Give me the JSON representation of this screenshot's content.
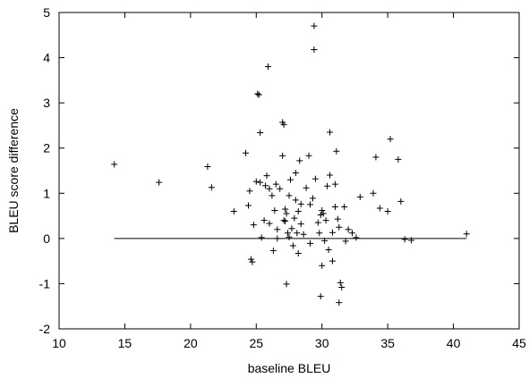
{
  "chart_data": {
    "type": "scatter",
    "title": "",
    "xlabel": "baseline BLEU",
    "ylabel": "BLEU score difference",
    "xlim": [
      10,
      45
    ],
    "ylim": [
      -2,
      5
    ],
    "xticks": [
      10,
      15,
      20,
      25,
      30,
      35,
      40,
      45
    ],
    "yticks": [
      -2,
      -1,
      0,
      1,
      2,
      3,
      4,
      5
    ],
    "grid": false,
    "marker": "plus",
    "reference_line": {
      "y": 0,
      "x_range": [
        14.2,
        41.0
      ]
    },
    "points": [
      [
        14.2,
        1.64
      ],
      [
        17.6,
        1.24
      ],
      [
        21.3,
        1.59
      ],
      [
        21.6,
        1.13
      ],
      [
        23.3,
        0.6
      ],
      [
        24.2,
        1.89
      ],
      [
        24.4,
        0.73
      ],
      [
        24.5,
        1.05
      ],
      [
        24.6,
        -0.46
      ],
      [
        24.7,
        -0.52
      ],
      [
        24.8,
        0.3
      ],
      [
        25.0,
        1.26
      ],
      [
        25.1,
        3.2
      ],
      [
        25.2,
        3.18
      ],
      [
        25.3,
        2.34
      ],
      [
        25.3,
        1.24
      ],
      [
        25.4,
        0.02
      ],
      [
        25.6,
        0.4
      ],
      [
        25.7,
        1.17
      ],
      [
        25.8,
        1.39
      ],
      [
        25.9,
        3.8
      ],
      [
        26.0,
        1.1
      ],
      [
        26.0,
        0.33
      ],
      [
        26.2,
        0.95
      ],
      [
        26.3,
        -0.27
      ],
      [
        26.4,
        0.62
      ],
      [
        26.5,
        1.2
      ],
      [
        26.6,
        0.0
      ],
      [
        26.6,
        0.2
      ],
      [
        26.8,
        1.1
      ],
      [
        27.0,
        1.83
      ],
      [
        27.0,
        2.57
      ],
      [
        27.1,
        2.52
      ],
      [
        27.1,
        0.4
      ],
      [
        27.2,
        0.65
      ],
      [
        27.2,
        0.38
      ],
      [
        27.3,
        0.55
      ],
      [
        27.3,
        -1.01
      ],
      [
        27.4,
        0.12
      ],
      [
        27.5,
        0.03
      ],
      [
        27.5,
        0.95
      ],
      [
        27.6,
        1.3
      ],
      [
        27.7,
        0.22
      ],
      [
        27.8,
        -0.16
      ],
      [
        27.9,
        0.45
      ],
      [
        28.0,
        1.45
      ],
      [
        28.0,
        0.85
      ],
      [
        28.1,
        0.12
      ],
      [
        28.2,
        0.6
      ],
      [
        28.2,
        -0.33
      ],
      [
        28.3,
        1.72
      ],
      [
        28.4,
        0.32
      ],
      [
        28.4,
        0.76
      ],
      [
        28.6,
        0.09
      ],
      [
        28.8,
        1.12
      ],
      [
        29.0,
        1.83
      ],
      [
        29.1,
        0.75
      ],
      [
        29.1,
        -0.11
      ],
      [
        29.3,
        0.89
      ],
      [
        29.4,
        4.7
      ],
      [
        29.4,
        4.18
      ],
      [
        29.5,
        1.32
      ],
      [
        29.7,
        0.35
      ],
      [
        29.8,
        0.12
      ],
      [
        29.9,
        -1.28
      ],
      [
        29.9,
        0.52
      ],
      [
        30.0,
        -0.6
      ],
      [
        30.0,
        0.62
      ],
      [
        30.1,
        0.55
      ],
      [
        30.2,
        -0.05
      ],
      [
        30.3,
        0.4
      ],
      [
        30.4,
        1.16
      ],
      [
        30.5,
        -0.25
      ],
      [
        30.6,
        1.4
      ],
      [
        30.6,
        2.35
      ],
      [
        30.8,
        -0.5
      ],
      [
        30.8,
        0.13
      ],
      [
        31.0,
        0.7
      ],
      [
        31.0,
        1.2
      ],
      [
        31.1,
        1.93
      ],
      [
        31.2,
        0.43
      ],
      [
        31.3,
        0.25
      ],
      [
        31.3,
        -1.42
      ],
      [
        31.4,
        -0.98
      ],
      [
        31.5,
        -1.08
      ],
      [
        31.7,
        0.7
      ],
      [
        31.8,
        -0.06
      ],
      [
        32.0,
        0.2
      ],
      [
        32.3,
        0.12
      ],
      [
        32.6,
        0.02
      ],
      [
        32.9,
        0.92
      ],
      [
        33.9,
        1.0
      ],
      [
        34.1,
        1.8
      ],
      [
        34.4,
        0.67
      ],
      [
        35.0,
        0.6
      ],
      [
        35.2,
        2.2
      ],
      [
        35.8,
        1.75
      ],
      [
        36.0,
        0.82
      ],
      [
        36.3,
        -0.02
      ],
      [
        36.8,
        -0.04
      ],
      [
        41.0,
        0.1
      ]
    ]
  }
}
